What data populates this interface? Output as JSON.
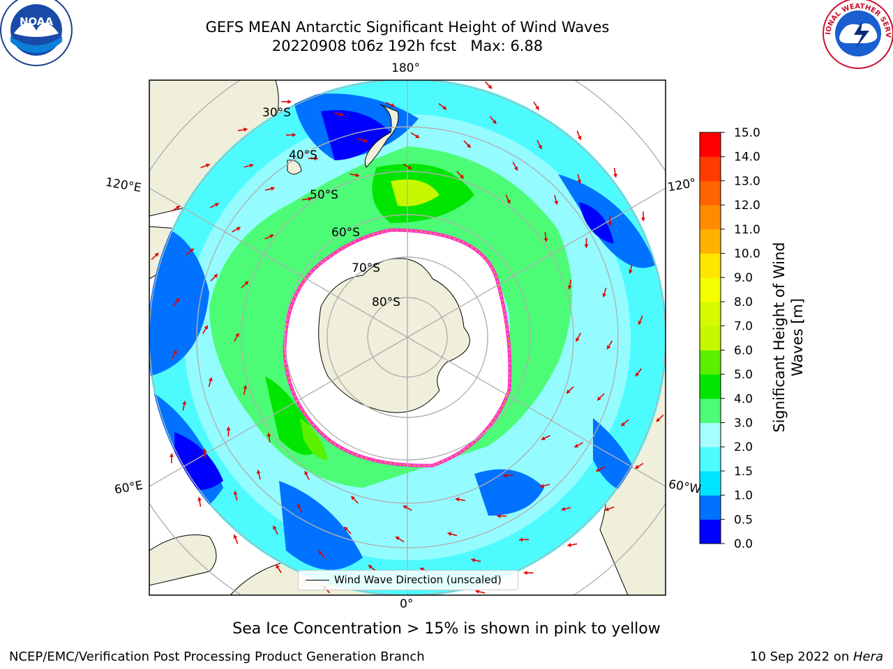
{
  "title": {
    "line1": "GEFS MEAN Antarctic Significant Height of Wind Waves",
    "line2": "20220908 t06z 192h fcst   Max: 6.88"
  },
  "logos": {
    "left": "NOAA",
    "right": "NATIONAL WEATHER SERVICE"
  },
  "map": {
    "lon_labels": [
      "180°",
      "120°E",
      "120°",
      "60°E",
      "60°W",
      "0°"
    ],
    "lat_labels": [
      "30°S",
      "40°S",
      "50°S",
      "60°S",
      "70°S",
      "80°S"
    ],
    "land_color": "#efefdb",
    "legend": "Wind Wave Direction (unscaled)"
  },
  "colorbar": {
    "label": "Significant Height of Wind Waves [m]",
    "ticks": [
      "0.0",
      "0.5",
      "1.0",
      "1.5",
      "2.0",
      "3.0",
      "4.0",
      "5.0",
      "6.0",
      "7.0",
      "8.0",
      "9.0",
      "10.0",
      "11.0",
      "12.0",
      "13.0",
      "14.0",
      "15.0"
    ],
    "colors": [
      "#0000ff",
      "#0072ff",
      "#00e5ff",
      "#4dfbff",
      "#a6fdff",
      "#4cfc76",
      "#00e600",
      "#5af000",
      "#c8f800",
      "#d6fa00",
      "#f5ff00",
      "#ffe600",
      "#ffb300",
      "#ff8c00",
      "#ff6400",
      "#ff3c00",
      "#ff0000"
    ]
  },
  "footnote": "Sea Ice Concentration > 15% is shown in pink to yellow",
  "credit_left": "NCEP/EMC/Verification Post Processing Product Generation Branch",
  "credit_right_prefix": "10 Sep 2022 on ",
  "credit_right_host": "Hera"
}
